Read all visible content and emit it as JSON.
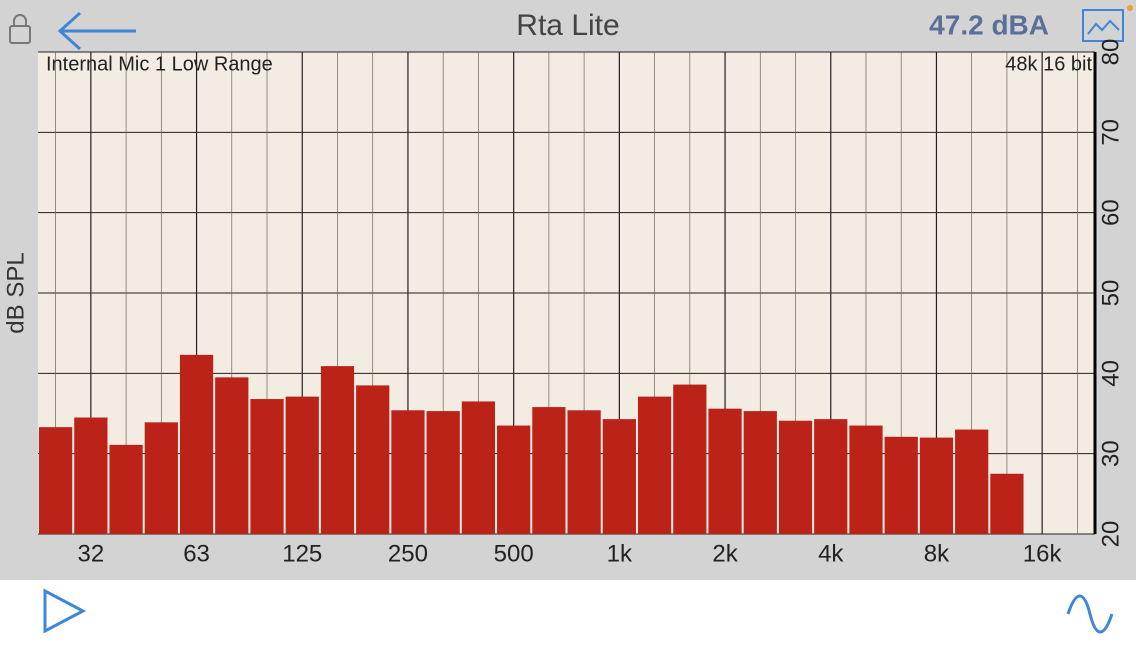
{
  "header": {
    "title": "Rta Lite",
    "level": "47.2 dBA"
  },
  "chart_data": {
    "type": "bar",
    "subtitle_left": "Internal Mic 1 Low Range",
    "subtitle_right": "48k 16 bit",
    "y_label": "dB SPL",
    "categories": [
      null,
      "32",
      null,
      null,
      "63",
      null,
      null,
      "125",
      null,
      null,
      "250",
      null,
      null,
      "500",
      null,
      null,
      "1k",
      null,
      null,
      "2k",
      null,
      null,
      "4k",
      null,
      null,
      "8k",
      null,
      null,
      "16k",
      null
    ],
    "values": [
      33.3,
      34.5,
      31.1,
      33.9,
      42.3,
      39.5,
      36.8,
      37.1,
      40.9,
      38.5,
      35.4,
      35.3,
      36.5,
      33.5,
      35.8,
      35.4,
      34.3,
      37.1,
      38.6,
      35.6,
      35.3,
      34.1,
      34.3,
      33.5,
      32.1,
      32.0,
      33.0,
      27.5,
      null,
      null
    ],
    "color": "#bb2318",
    "ylim": [
      20,
      80
    ],
    "yticks": [
      20,
      30,
      40,
      50,
      60,
      70,
      80
    ],
    "grid": true
  }
}
